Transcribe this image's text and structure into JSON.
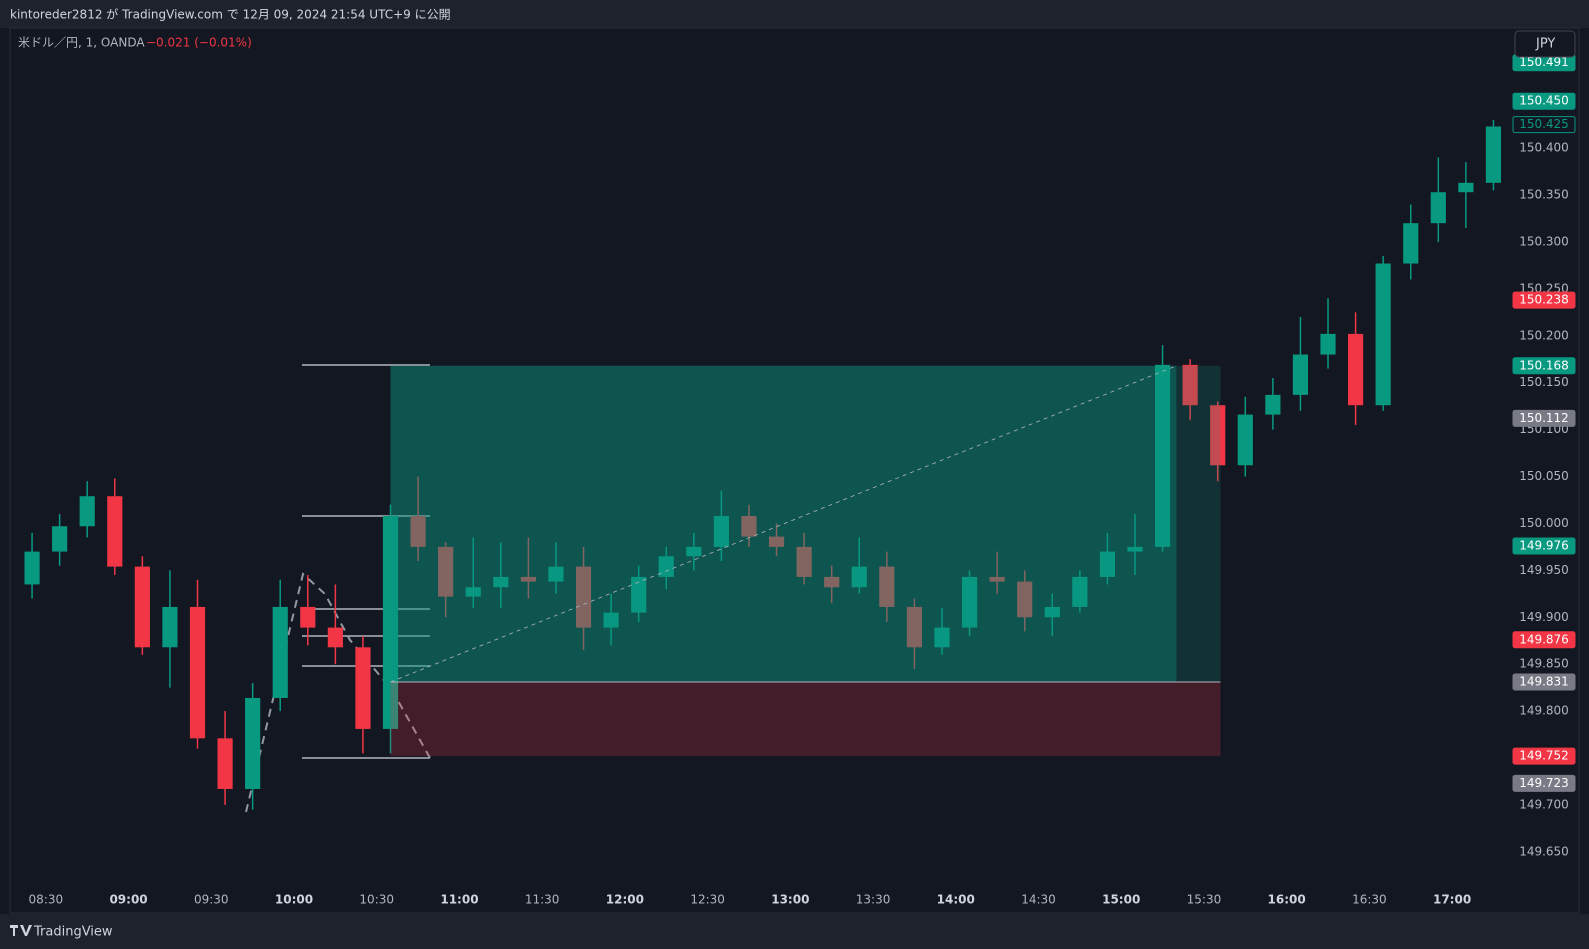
{
  "header": {
    "published": "kintoreder2812 が TradingView.com で 12月 09, 2024 21:54 UTC+9 に公開"
  },
  "legend": {
    "symbol": "米ドル／円, 1, OANDA",
    "change": "−0.021 (−0.01%)"
  },
  "currency_button": "JPY",
  "footer": {
    "brand": "TradingView"
  },
  "chart_data": {
    "type": "candlestick",
    "up_color": "#089981",
    "down_color": "#f23645",
    "grid": false,
    "xlim": [
      "08:17",
      "17:21"
    ],
    "ylim": [
      149.62,
      150.528
    ],
    "xticks": [
      "08:30",
      "09:00",
      "09:30",
      "10:00",
      "10:30",
      "11:00",
      "11:30",
      "12:00",
      "12:30",
      "13:00",
      "13:30",
      "14:00",
      "14:30",
      "15:00",
      "15:30",
      "16:00",
      "16:30",
      "17:00"
    ],
    "yticks": [
      {
        "value": 149.65,
        "label": "149.650"
      },
      {
        "value": 149.7,
        "label": "149.700"
      },
      {
        "value": 149.75,
        "label": "149.750"
      },
      {
        "value": 149.8,
        "label": "149.800"
      },
      {
        "value": 149.85,
        "label": "149.850"
      },
      {
        "value": 149.9,
        "label": "149.900"
      },
      {
        "value": 149.95,
        "label": "149.950"
      },
      {
        "value": 150.0,
        "label": "150.000"
      },
      {
        "value": 150.05,
        "label": "150.050"
      },
      {
        "value": 150.1,
        "label": "150.100"
      },
      {
        "value": 150.15,
        "label": "150.150"
      },
      {
        "value": 150.2,
        "label": "150.200"
      },
      {
        "value": 150.25,
        "label": "150.250"
      },
      {
        "value": 150.3,
        "label": "150.300"
      },
      {
        "value": 150.35,
        "label": "150.350"
      },
      {
        "value": 150.4,
        "label": "150.400"
      }
    ],
    "x": [
      "08:20",
      "08:30",
      "08:40",
      "08:50",
      "09:00",
      "09:10",
      "09:20",
      "09:30",
      "09:40",
      "09:50",
      "10:00",
      "10:10",
      "10:20",
      "10:30",
      "10:40",
      "10:50",
      "11:00",
      "11:10",
      "11:20",
      "11:30",
      "11:40",
      "11:50",
      "12:00",
      "12:10",
      "12:20",
      "12:30",
      "12:40",
      "12:50",
      "13:00",
      "13:10",
      "13:20",
      "13:30",
      "13:40",
      "13:50",
      "14:00",
      "14:10",
      "14:20",
      "14:30",
      "14:40",
      "14:50",
      "15:00",
      "15:10",
      "15:20",
      "15:30",
      "15:40",
      "15:50",
      "16:00",
      "16:10",
      "16:20",
      "16:30",
      "16:40",
      "16:50",
      "17:00",
      "17:10"
    ],
    "open": [
      149.935,
      149.97,
      149.997,
      150.029,
      149.954,
      149.868,
      149.911,
      149.771,
      149.717,
      149.814,
      149.911,
      149.889,
      149.868,
      149.781,
      150.008,
      149.975,
      149.922,
      149.932,
      149.943,
      149.938,
      149.954,
      149.889,
      149.905,
      149.943,
      149.965,
      149.975,
      150.008,
      149.986,
      149.975,
      149.943,
      149.932,
      149.954,
      149.911,
      149.868,
      149.889,
      149.943,
      149.938,
      149.9,
      149.911,
      149.943,
      149.97,
      149.975,
      150.169,
      150.126,
      150.062,
      150.116,
      150.137,
      150.18,
      150.202,
      150.126,
      150.277,
      150.32,
      150.353,
      150.363
    ],
    "high": [
      149.99,
      150.01,
      150.045,
      150.048,
      149.965,
      149.95,
      149.94,
      149.8,
      149.83,
      149.94,
      149.945,
      149.935,
      149.88,
      150.02,
      150.05,
      149.98,
      149.985,
      149.98,
      149.985,
      149.98,
      149.975,
      149.925,
      149.955,
      149.975,
      149.99,
      150.035,
      150.02,
      150.0,
      149.99,
      149.955,
      149.985,
      149.97,
      149.92,
      149.91,
      149.95,
      149.97,
      149.95,
      149.925,
      149.95,
      149.99,
      150.01,
      150.19,
      150.175,
      150.13,
      150.135,
      150.155,
      150.22,
      150.24,
      150.225,
      150.285,
      150.34,
      150.39,
      150.385,
      150.43
    ],
    "low": [
      149.92,
      149.955,
      149.985,
      149.945,
      149.86,
      149.825,
      149.76,
      149.7,
      149.695,
      149.8,
      149.87,
      149.85,
      149.755,
      149.755,
      149.96,
      149.9,
      149.91,
      149.91,
      149.92,
      149.925,
      149.865,
      149.87,
      149.895,
      149.93,
      149.95,
      149.96,
      149.975,
      149.965,
      149.935,
      149.915,
      149.925,
      149.895,
      149.845,
      149.86,
      149.88,
      149.925,
      149.885,
      149.88,
      149.905,
      149.935,
      149.945,
      149.97,
      150.11,
      150.045,
      150.05,
      150.1,
      150.12,
      150.165,
      150.105,
      150.12,
      150.26,
      150.3,
      150.315,
      150.355
    ],
    "close": [
      149.97,
      149.997,
      150.029,
      149.954,
      149.868,
      149.911,
      149.771,
      149.717,
      149.814,
      149.911,
      149.889,
      149.868,
      149.781,
      150.008,
      149.975,
      149.922,
      149.932,
      149.943,
      149.938,
      149.954,
      149.889,
      149.905,
      149.943,
      149.965,
      149.975,
      150.008,
      149.986,
      149.975,
      149.943,
      149.932,
      149.954,
      149.911,
      149.868,
      149.889,
      149.943,
      149.938,
      149.9,
      149.911,
      149.943,
      149.97,
      149.975,
      150.169,
      150.126,
      150.062,
      150.116,
      150.137,
      150.18,
      150.202,
      150.126,
      150.277,
      150.32,
      150.353,
      150.363,
      150.423
    ],
    "price_labels": [
      {
        "value": 150.491,
        "label": "150.491",
        "color": "#089981"
      },
      {
        "value": 150.45,
        "label": "150.450",
        "color": "#089981"
      },
      {
        "value": 150.425,
        "label": "150.425",
        "color": "#089981",
        "outline": true
      },
      {
        "value": 150.238,
        "label": "150.238",
        "color": "#f23645"
      },
      {
        "value": 150.168,
        "label": "150.168",
        "color": "#089981"
      },
      {
        "value": 150.112,
        "label": "150.112",
        "color": "#787b86"
      },
      {
        "value": 149.976,
        "label": "149.976",
        "color": "#089981"
      },
      {
        "value": 149.876,
        "label": "149.876",
        "color": "#f23645"
      },
      {
        "value": 149.831,
        "label": "149.831",
        "color": "#787b86"
      },
      {
        "value": 149.752,
        "label": "149.752",
        "color": "#f23645"
      },
      {
        "value": 149.723,
        "label": "149.723",
        "color": "#787b86"
      }
    ],
    "position": {
      "start": "10:35",
      "exit": "15:20",
      "end": "15:36"
    }
  }
}
